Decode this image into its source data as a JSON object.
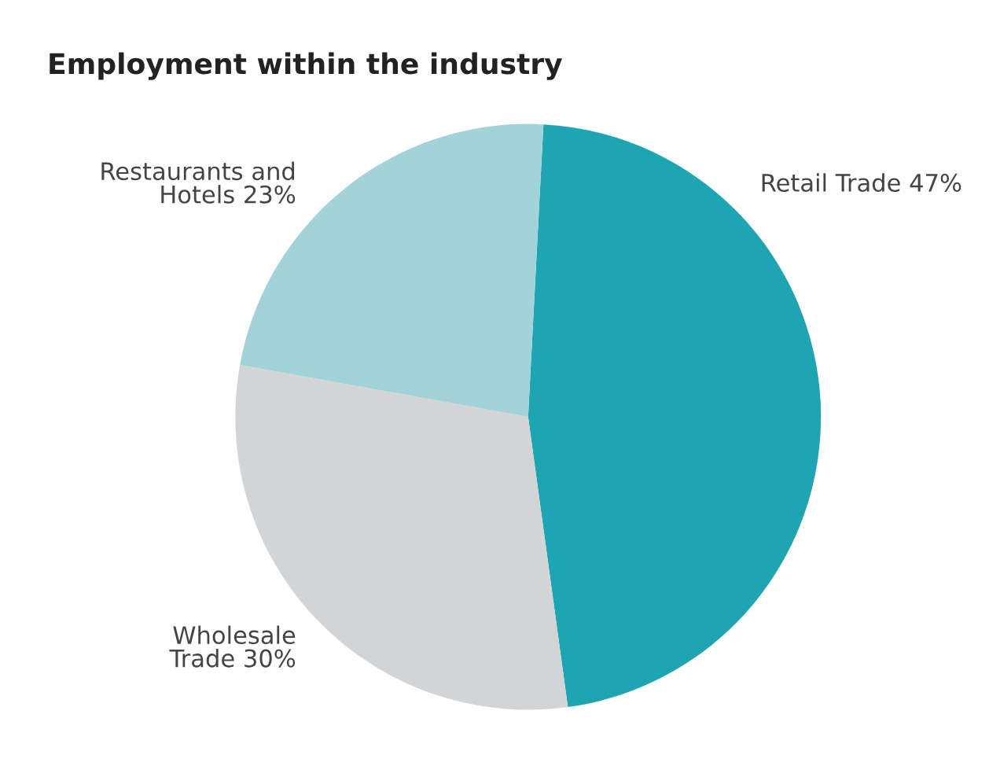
{
  "chart_data": {
    "type": "pie",
    "title": "Employment within the industry",
    "categories": [
      "Retail Trade",
      "Wholesale\nTrade",
      "Restaurants and\nHotels"
    ],
    "values": [
      47,
      30,
      23
    ],
    "value_labels": [
      "47%",
      "30%",
      "23%"
    ],
    "colors": [
      "#1fa5b2",
      "#d3d4d6",
      "#a3d2d8"
    ]
  }
}
